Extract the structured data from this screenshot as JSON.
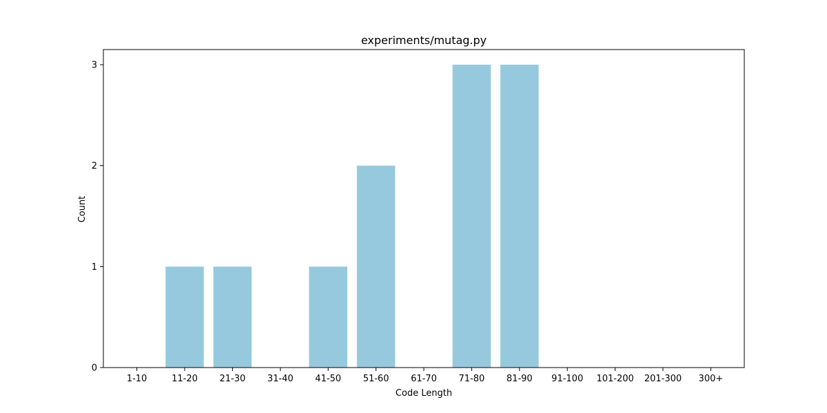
{
  "chart_data": {
    "type": "bar",
    "title": "experiments/mutag.py",
    "xlabel": "Code Length",
    "ylabel": "Count",
    "categories": [
      "1-10",
      "11-20",
      "21-30",
      "31-40",
      "41-50",
      "51-60",
      "61-70",
      "71-80",
      "81-90",
      "91-100",
      "101-200",
      "201-300",
      "300+"
    ],
    "values": [
      0,
      1,
      1,
      0,
      1,
      2,
      0,
      3,
      3,
      0,
      0,
      0,
      0
    ],
    "ylim": [
      0,
      3.15
    ],
    "yticks": [
      0,
      1,
      2,
      3
    ],
    "grid": false,
    "bar_color": "#96c9dd"
  }
}
